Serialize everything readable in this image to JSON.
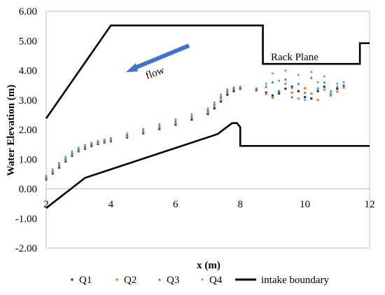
{
  "chart_data": {
    "type": "scatter",
    "title": "",
    "xlabel": "x (m)",
    "ylabel": "Water Elevation (m)",
    "xlim": [
      2,
      12
    ],
    "ylim": [
      -2,
      6
    ],
    "xticks": [
      "2",
      "4",
      "6",
      "8",
      "10",
      "12"
    ],
    "yticks": [
      "-2.00",
      "-1.00",
      "0.00",
      "1.00",
      "2.00",
      "3.00",
      "4.00",
      "5.00",
      "6.00"
    ],
    "grid": false,
    "legend": "bottom",
    "annotations": {
      "rack_plane": "Rack Plane",
      "flow": "flow"
    },
    "series": [
      {
        "name": "Q1",
        "color": "#1f3864",
        "marker": "square",
        "x": [
          2.0,
          2.2,
          2.4,
          2.6,
          2.8,
          3.0,
          3.2,
          3.4,
          3.6,
          3.8,
          4.0,
          4.5,
          5.0,
          5.5,
          6.0,
          6.5,
          7.0,
          7.2,
          7.4,
          7.6,
          7.8,
          8.0,
          8.5,
          8.8,
          9.0,
          9.2,
          9.4,
          9.6,
          9.8,
          10.0,
          10.2,
          10.4,
          10.6,
          10.8,
          11.0,
          11.2
        ],
        "y": [
          0.32,
          0.52,
          0.72,
          0.93,
          1.12,
          1.27,
          1.36,
          1.45,
          1.52,
          1.57,
          1.61,
          1.74,
          1.88,
          2.02,
          2.17,
          2.34,
          2.53,
          2.72,
          2.95,
          3.18,
          3.3,
          3.38,
          3.36,
          3.25,
          3.15,
          3.22,
          3.38,
          3.45,
          3.3,
          3.1,
          3.05,
          3.3,
          3.45,
          3.2,
          3.38,
          3.48
        ]
      },
      {
        "name": "Q2",
        "color": "#ed7d31",
        "marker": "square",
        "x": [
          2.0,
          2.2,
          2.4,
          2.6,
          2.8,
          3.0,
          3.2,
          3.4,
          3.6,
          3.8,
          4.0,
          4.5,
          5.0,
          5.5,
          6.0,
          6.5,
          7.0,
          7.2,
          7.4,
          7.6,
          7.8,
          8.0,
          8.5,
          8.8,
          9.0,
          9.2,
          9.4,
          9.6,
          9.8,
          10.0,
          10.2,
          10.4,
          10.6,
          10.8,
          11.0,
          11.2
        ],
        "y": [
          0.36,
          0.56,
          0.77,
          0.98,
          1.16,
          1.3,
          1.4,
          1.49,
          1.55,
          1.6,
          1.64,
          1.78,
          1.92,
          2.07,
          2.22,
          2.4,
          2.6,
          2.8,
          3.05,
          3.26,
          3.37,
          3.41,
          3.32,
          3.2,
          3.08,
          3.3,
          3.55,
          3.25,
          3.05,
          3.4,
          3.22,
          3.0,
          3.35,
          3.15,
          3.28,
          3.42
        ]
      },
      {
        "name": "Q3",
        "color": "#2e8b8b",
        "marker": "triangle",
        "x": [
          2.0,
          2.2,
          2.4,
          2.6,
          2.8,
          3.0,
          3.2,
          3.4,
          3.6,
          3.8,
          4.0,
          4.5,
          5.0,
          5.5,
          6.0,
          6.5,
          7.0,
          7.2,
          7.4,
          7.6,
          7.8,
          8.0,
          8.5,
          8.8,
          9.0,
          9.2,
          9.4,
          9.6,
          9.8,
          10.0,
          10.2,
          10.4,
          10.6,
          10.8,
          11.0,
          11.2
        ],
        "y": [
          0.4,
          0.61,
          0.82,
          1.03,
          1.21,
          1.35,
          1.44,
          1.52,
          1.58,
          1.63,
          1.68,
          1.82,
          1.97,
          2.13,
          2.29,
          2.46,
          2.66,
          2.86,
          3.12,
          3.31,
          3.4,
          3.43,
          3.35,
          3.45,
          3.6,
          3.3,
          3.7,
          3.1,
          3.55,
          3.25,
          3.75,
          3.4,
          3.6,
          3.3,
          3.45,
          3.5
        ]
      },
      {
        "name": "Q4",
        "color": "#5b9bd5",
        "marker": "dot",
        "x": [
          2.0,
          2.2,
          2.4,
          2.6,
          2.8,
          3.0,
          3.2,
          3.4,
          3.6,
          3.8,
          4.0,
          4.5,
          5.0,
          5.5,
          6.0,
          6.5,
          7.0,
          7.2,
          7.4,
          7.6,
          7.8,
          8.0,
          8.5,
          8.8,
          9.0,
          9.2,
          9.4,
          9.6,
          9.8,
          10.0,
          10.2,
          10.4,
          10.6,
          10.8,
          11.0,
          11.2
        ],
        "y": [
          0.44,
          0.66,
          0.87,
          1.08,
          1.26,
          1.39,
          1.48,
          1.56,
          1.62,
          1.67,
          1.72,
          1.87,
          2.02,
          2.19,
          2.35,
          2.52,
          2.72,
          2.92,
          3.18,
          3.36,
          3.43,
          3.45,
          3.4,
          3.55,
          3.9,
          3.65,
          4.0,
          3.4,
          3.85,
          3.0,
          3.95,
          3.6,
          3.8,
          3.2,
          3.55,
          3.6
        ]
      },
      {
        "name": "intake boundary",
        "color": "#000000",
        "marker": "line",
        "segments": [
          {
            "x": [
              2.0,
              4.0,
              8.7,
              8.7,
              11.7,
              11.7,
              12.0
            ],
            "y": [
              2.38,
              5.52,
              5.52,
              4.22,
              4.22,
              4.92,
              4.92
            ]
          },
          {
            "x": [
              2.0,
              3.2,
              7.3,
              7.75,
              7.9,
              8.0,
              8.0,
              12.0
            ],
            "y": [
              -0.65,
              0.37,
              1.85,
              2.22,
              2.22,
              2.08,
              1.45,
              1.45
            ]
          }
        ]
      }
    ]
  }
}
